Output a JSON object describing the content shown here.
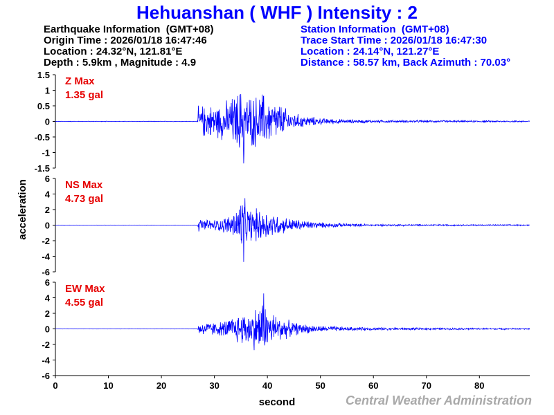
{
  "title": {
    "station_name": "Hehuanshan",
    "station_code": "( WHF )",
    "intensity_label": "Intensity : 2"
  },
  "earthquake_info": {
    "heading": "Earthquake Information  (GMT+08)",
    "origin_time": "Origin Time : 2026/01/18 16:47:46",
    "location": "Location : 24.32°N, 121.81°E",
    "depth_magnitude": "Depth : 5.9km , Magnitude : 4.9"
  },
  "station_info": {
    "heading": "Station Information  (GMT+08)",
    "trace_start": "Trace Start Time : 2026/01/18 16:47:30",
    "location": "Location : 24.14°N, 121.27°E",
    "distance": "Distance : 58.57 km, Back Azimuth : 70.03°"
  },
  "credit": "Central Weather Administration",
  "colors": {
    "trace": "#0000ff",
    "max_label": "#e60000",
    "title": "#0000ff"
  },
  "chart_data": {
    "type": "line",
    "xlabel": "second",
    "ylabel": "acceleration",
    "xlim": [
      0,
      89.5
    ],
    "x_ticks": [
      0,
      10,
      20,
      30,
      40,
      50,
      60,
      70,
      80
    ],
    "grid": false,
    "series": [
      {
        "name": "Z Max",
        "max_value": "1.35 gal",
        "ylim": [
          -1.5,
          1.5
        ],
        "y_ticks": [
          1.5,
          1,
          0.5,
          0,
          -0.5,
          -1,
          -1.5
        ],
        "y_tick_labels": [
          "1.5",
          "1",
          "0.5",
          "0",
          "-0.5",
          "-1",
          "-1.5"
        ],
        "p_arrival_s": 27,
        "peak_time_s": 35.5,
        "peak_value": -1.35,
        "envelope": [
          [
            0,
            0.01
          ],
          [
            26.8,
            0.01
          ],
          [
            27,
            0.55
          ],
          [
            28,
            0.6
          ],
          [
            30,
            0.6
          ],
          [
            32,
            0.7
          ],
          [
            34,
            1.0
          ],
          [
            35.5,
            1.35
          ],
          [
            36,
            1.0
          ],
          [
            38,
            0.95
          ],
          [
            39,
            1.1
          ],
          [
            40,
            0.85
          ],
          [
            42,
            0.7
          ],
          [
            44,
            0.4
          ],
          [
            46,
            0.25
          ],
          [
            50,
            0.12
          ],
          [
            55,
            0.07
          ],
          [
            60,
            0.05
          ],
          [
            70,
            0.04
          ],
          [
            80,
            0.03
          ],
          [
            89.5,
            0.03
          ]
        ]
      },
      {
        "name": "NS Max",
        "max_value": "4.73 gal",
        "ylim": [
          -6,
          6
        ],
        "y_ticks": [
          6,
          4,
          2,
          0,
          -2,
          -4,
          -6
        ],
        "y_tick_labels": [
          "6",
          "4",
          "2",
          "0",
          "-2",
          "-4",
          "-6"
        ],
        "p_arrival_s": 27,
        "peak_time_s": 35.5,
        "peak_value": -4.73,
        "envelope": [
          [
            0,
            0.02
          ],
          [
            26.8,
            0.02
          ],
          [
            27,
            0.9
          ],
          [
            29,
            0.8
          ],
          [
            31,
            0.9
          ],
          [
            33,
            1.5
          ],
          [
            34,
            2.5
          ],
          [
            35.5,
            4.73
          ],
          [
            36,
            2.6
          ],
          [
            38,
            2.4
          ],
          [
            39,
            2.5
          ],
          [
            41,
            1.8
          ],
          [
            43,
            1.2
          ],
          [
            46,
            0.8
          ],
          [
            50,
            0.4
          ],
          [
            55,
            0.25
          ],
          [
            60,
            0.15
          ],
          [
            70,
            0.12
          ],
          [
            80,
            0.1
          ],
          [
            89.5,
            0.08
          ]
        ]
      },
      {
        "name": "EW Max",
        "max_value": "4.55 gal",
        "ylim": [
          -6,
          6
        ],
        "y_ticks": [
          6,
          4,
          2,
          0,
          -2,
          -4,
          -6
        ],
        "y_tick_labels": [
          "6",
          "4",
          "2",
          "0",
          "-2",
          "-4",
          "-6"
        ],
        "p_arrival_s": 27,
        "peak_time_s": 39.3,
        "peak_value": 4.55,
        "envelope": [
          [
            0,
            0.02
          ],
          [
            26.8,
            0.02
          ],
          [
            27,
            0.9
          ],
          [
            29,
            1.0
          ],
          [
            31,
            1.0
          ],
          [
            33,
            1.6
          ],
          [
            35,
            2.4
          ],
          [
            37,
            2.6
          ],
          [
            39.3,
            4.55
          ],
          [
            40,
            2.8
          ],
          [
            42,
            2.0
          ],
          [
            44,
            1.2
          ],
          [
            46,
            0.8
          ],
          [
            50,
            0.45
          ],
          [
            55,
            0.3
          ],
          [
            60,
            0.2
          ],
          [
            70,
            0.15
          ],
          [
            80,
            0.12
          ],
          [
            89.5,
            0.1
          ]
        ]
      }
    ]
  }
}
